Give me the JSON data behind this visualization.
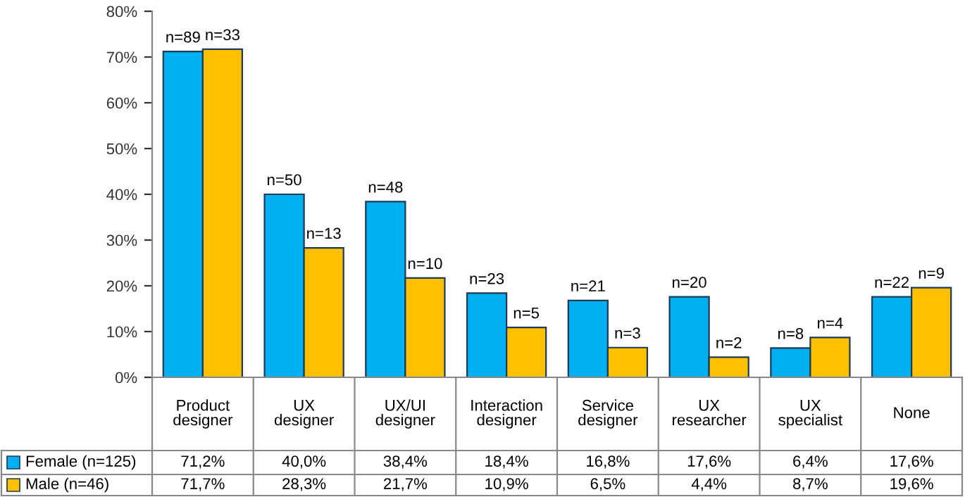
{
  "chart_data": {
    "type": "bar",
    "categories": [
      "Product\ndesigner",
      "UX\ndesigner",
      "UX/UI\ndesigner",
      "Interaction\ndesigner",
      "Service\ndesigner",
      "UX\nresearcher",
      "UX\nspecialist",
      "None"
    ],
    "series": [
      {
        "name": "Female (n=125)",
        "color": "#00b0f0",
        "values": [
          71.2,
          40.0,
          38.4,
          18.4,
          16.8,
          17.6,
          6.4,
          17.6
        ],
        "value_labels": [
          "71,2%",
          "40,0%",
          "38,4%",
          "18,4%",
          "16,8%",
          "17,6%",
          "6,4%",
          "17,6%"
        ]
      },
      {
        "name": "Male (n=46)",
        "color": "#ffc000",
        "values": [
          71.7,
          28.3,
          21.7,
          10.9,
          6.5,
          4.4,
          8.7,
          19.6
        ],
        "value_labels": [
          "71,7%",
          "28,3%",
          "21,7%",
          "10,9%",
          "6,5%",
          "4,4%",
          "8,7%",
          "19,6%"
        ]
      }
    ],
    "annotations": [
      {
        "text": "n=89",
        "x": "Product\ndesigner",
        "y": 71.2
      },
      {
        "text": "n=50",
        "x": "UX\ndesigner",
        "y": 40.0
      },
      {
        "text": "n=48",
        "x": "UX/UI\ndesigner",
        "y": 38.4
      },
      {
        "text": "n=23",
        "x": "Interaction\ndesigner",
        "y": 18.4
      },
      {
        "text": "n=21",
        "x": "Service\ndesigner",
        "y": 16.8
      },
      {
        "text": "n=20",
        "x": "UX\nresearcher",
        "y": 17.6
      },
      {
        "text": "n=8",
        "x": "UX\nspecialist",
        "y": 6.4
      },
      {
        "text": "n=22",
        "x": "None",
        "y": 17.6
      },
      {
        "text": "n=33",
        "x": "Product\ndesigner",
        "y": 71.7
      },
      {
        "text": "n=13",
        "x": "UX\ndesigner",
        "y": 28.3
      },
      {
        "text": "n=10",
        "x": "UX/UI\ndesigner",
        "y": 21.7
      },
      {
        "text": "n=5",
        "x": "Interaction\ndesigner",
        "y": 10.9
      },
      {
        "text": "n=3",
        "x": "Service\ndesigner",
        "y": 6.5
      },
      {
        "text": "n=2",
        "x": "UX\nresearcher",
        "y": 4.4
      },
      {
        "text": "n=4",
        "x": "UX\nspecialist",
        "y": 8.7
      },
      {
        "text": "n=9",
        "x": "None",
        "y": 19.6
      }
    ],
    "ylim": [
      0,
      80
    ],
    "yticks": [
      {
        "value": 0,
        "label": "0%"
      },
      {
        "value": 10,
        "label": "10%"
      },
      {
        "value": 20,
        "label": "20%"
      },
      {
        "value": 30,
        "label": "30%"
      },
      {
        "value": 40,
        "label": "40%"
      },
      {
        "value": 50,
        "label": "50%"
      },
      {
        "value": 60,
        "label": "60%"
      },
      {
        "value": 70,
        "label": "70%"
      },
      {
        "value": 80,
        "label": "80%"
      }
    ],
    "legend": "bottom",
    "grid": false
  }
}
